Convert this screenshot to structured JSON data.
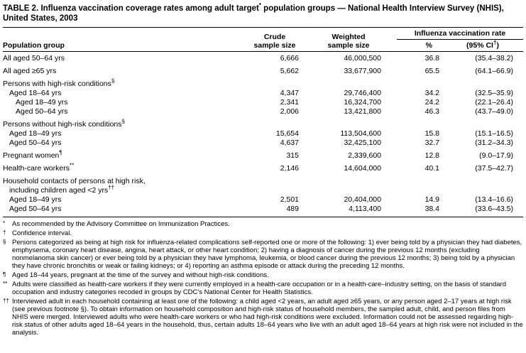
{
  "title": {
    "part1": "TABLE 2. Influenza vaccination coverage rates among adult target",
    "sup": "*",
    "part2": " population groups — National Health Interview Survey (NHIS), United States, 2003"
  },
  "table": {
    "headers": {
      "population_group": "Population group",
      "crude_line1": "Crude",
      "crude_line2": "sample size",
      "weighted_line1": "Weighted",
      "weighted_line2": "sample size",
      "span": "Influenza vaccination rate",
      "pct": "%",
      "ci_pre": "(95% CI",
      "ci_sup": "†",
      "ci_post": ")"
    },
    "rows": [
      {
        "label": "All aged 50–64 yrs",
        "crude": "6,666",
        "weighted": "46,000,500",
        "pct": "36.8",
        "ci": "(35.4–38.2)"
      },
      {
        "label": "All aged ≥65 yrs",
        "crude": "5,662",
        "weighted": "33,677,900",
        "pct": "65.5",
        "ci": "(64.1–66.9)"
      },
      {
        "label": "Persons with high-risk conditions",
        "sup": "§"
      },
      {
        "label": "Aged 18–64 yrs",
        "crude": "4,347",
        "weighted": "29,746,400",
        "pct": "34.2",
        "ci": "(32.5–35.9)"
      },
      {
        "label": "Aged 18–49 yrs",
        "crude": "2,341",
        "weighted": "16,324,700",
        "pct": "24.2",
        "ci": "(22.1–26.4)"
      },
      {
        "label": "Aged 50–64 yrs",
        "crude": "2,006",
        "weighted": "13,421,800",
        "pct": "46.3",
        "ci": "(43.7–49.0)"
      },
      {
        "label": "Persons without high-risk conditions",
        "sup": "§"
      },
      {
        "label": "Aged 18–49 yrs",
        "crude": "15,654",
        "weighted": "113,504,600",
        "pct": "15.8",
        "ci": "(15.1–16.5)"
      },
      {
        "label": "Aged 50–64 yrs",
        "crude": "4,637",
        "weighted": "32,425,100",
        "pct": "32.7",
        "ci": "(31.2–34.3)"
      },
      {
        "label": "Pregnant women",
        "sup": "¶",
        "crude": "315",
        "weighted": "2,339,600",
        "pct": "12.8",
        "ci": "(9.0–17.9)"
      },
      {
        "label": "Health-care workers",
        "sup": "**",
        "crude": "2,146",
        "weighted": "14,604,000",
        "pct": "40.1",
        "ci": "(37.5–42.7)"
      },
      {
        "label": "Household contacts of persons at high risk,"
      },
      {
        "label": "including children aged <2 yrs",
        "sup": "††"
      },
      {
        "label": "Aged 18–49 yrs",
        "crude": "2,501",
        "weighted": "20,404,000",
        "pct": "14.9",
        "ci": "(13.4–16.6)"
      },
      {
        "label": "Aged 50–64 yrs",
        "crude": "489",
        "weighted": "4,113,400",
        "pct": "38.4",
        "ci": "(33.6–43.5)"
      }
    ]
  },
  "footnotes": [
    {
      "marker": "*",
      "text": "As recommended by the Advisory Committee on Immunization Practices."
    },
    {
      "marker": "†",
      "text": "Confidence interval."
    },
    {
      "marker": "§",
      "text": "Persons categorized as being at high risk for influenza-related complications self-reported one or more of the following: 1) ever being told by a physician they had diabetes, emphysema, coronary heart disease, angina, heart attack, or other heart condition; 2) having a diagnosis of cancer during the previous 12 months (excluding nonmelanoma skin cancer) or ever being told by a physician they have lymphoma, leukemia, or blood cancer during the previous 12 months; 3) being told by a physician they have chronic bronchitis or weak or failing kidneys; or 4) reporting an asthma episode or attack during the preceding 12 months."
    },
    {
      "marker": "¶",
      "text": "Aged 18–44 years, pregnant at the time of the survey and without high-risk conditions."
    },
    {
      "marker": "**",
      "text": "Adults were classified as health-care workers if they were currently employed in a health-care occupation or in a health-care–industry setting, on the basis of standard occupation and industry categories recoded in groups by CDC's National Center for Health Statistics."
    },
    {
      "marker": "††",
      "text": "Interviewed adult in each household containing at least one of the following: a child aged <2 years, an adult aged ≥65 years, or any person aged 2–17 years at high risk (see previous footnote §). To obtain information on household composition and high-risk status of household members, the sampled adult, child, and person files from NHIS were merged. Interviewed adults who were health-care workers or who had high-risk conditions were excluded. Information could not be assessed regarding high-risk status of other adults aged 18–64 years in the household, thus, certain adults 18–64 years who live with an adult aged 18–64 years at high risk were not included in the analysis."
    }
  ]
}
